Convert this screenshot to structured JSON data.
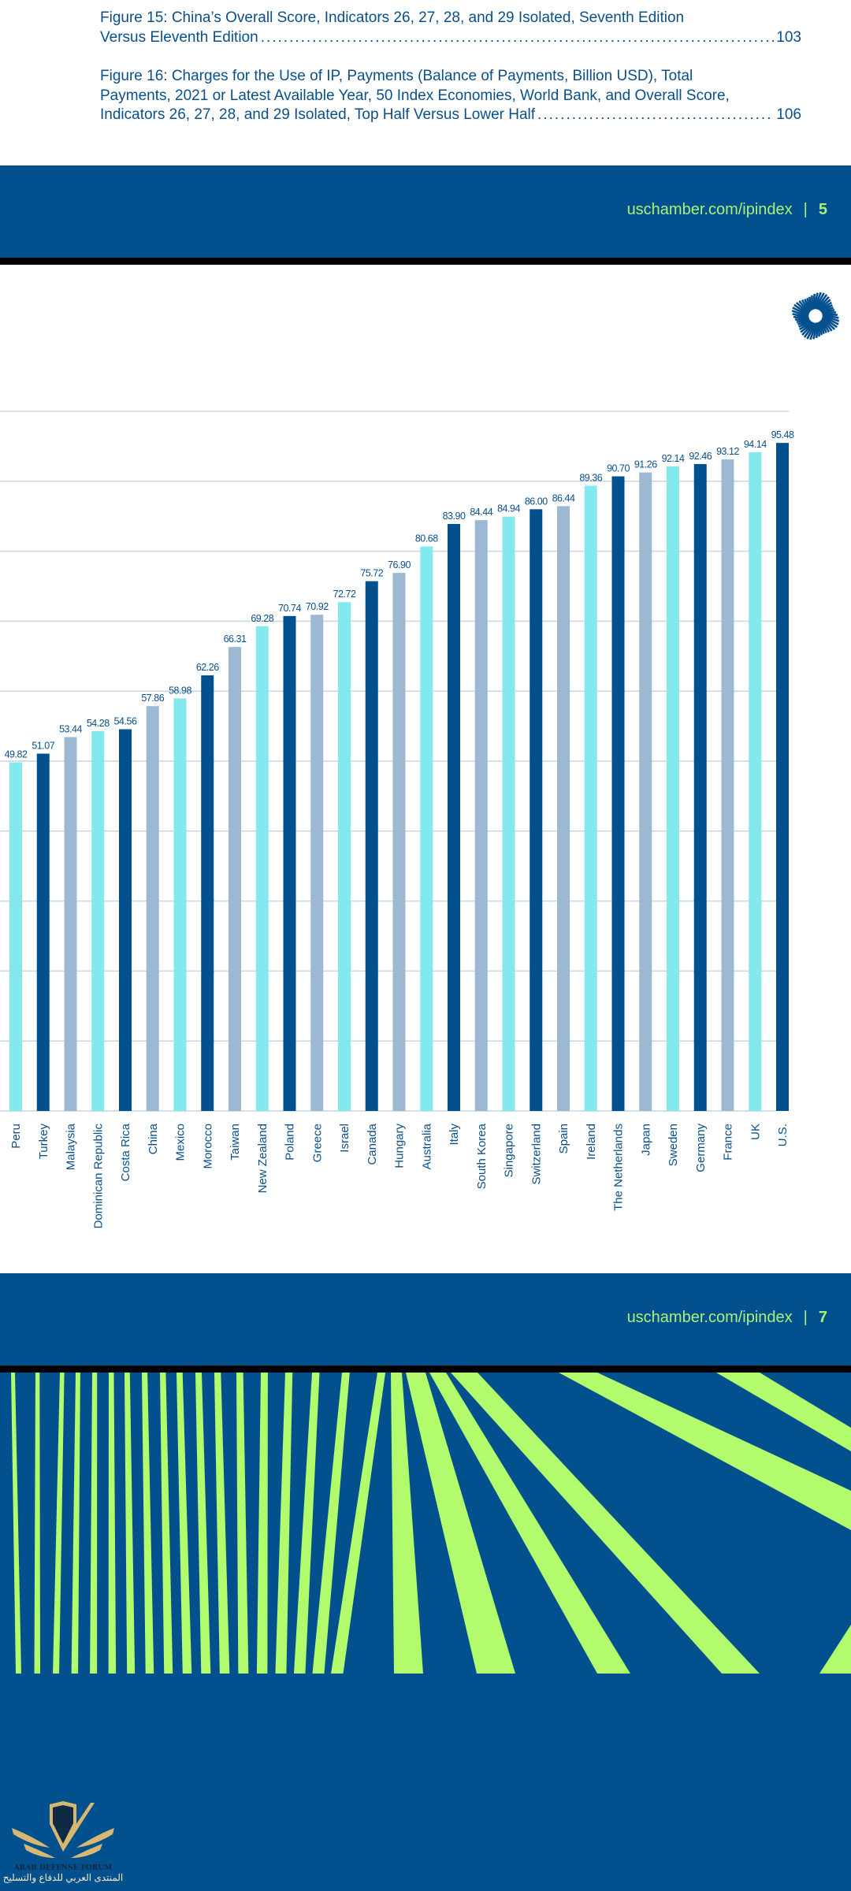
{
  "toc": {
    "entries": [
      {
        "lines": [
          "Figure 15: China’s Overall Score, Indicators 26, 27, 28, and 29 Isolated, Seventh Edition"
        ],
        "last_line": "Versus Eleventh Edition",
        "page": "103"
      },
      {
        "lines": [
          "Figure 16: Charges for the Use of IP, Payments (Balance of Payments, Billion USD), Total",
          "Payments, 2021 or Latest Available Year, 50 Index Economies, World Bank, and Overall Score,"
        ],
        "last_line": "Indicators 26, 27, 28, and 29 Isolated, Top Half Versus Lower Half",
        "page": "106"
      }
    ]
  },
  "footer_1": {
    "url": "uschamber.com/ipindex",
    "separator": "|",
    "page": "5"
  },
  "footer_2": {
    "url": "uschamber.com/ipindex",
    "separator": "|",
    "page": "7"
  },
  "colors": {
    "brand_blue": "#03508e",
    "accent_green": "#a9f07a",
    "stripe_green": "#b2fb6c",
    "bar_dark": "#03508e",
    "bar_gray": "#9cb8d3",
    "bar_cyan": "#84e9ef",
    "text_blue": "#0a4f8a"
  },
  "icons": {
    "top_logo": "spiral-sunburst-logo",
    "watermark": "arab-defense-forum-shield-logo"
  },
  "watermark": {
    "text_en": "ARAB DEFENSE FORUM",
    "text_ar": "المنتدى العربي للدفاع والتسليح"
  },
  "chart_data": {
    "type": "bar",
    "categories": [
      "Peru",
      "Turkey",
      "Malaysia",
      "Dominican Republic",
      "Costa Rica",
      "China",
      "Mexico",
      "Morocco",
      "Taiwan",
      "New Zealand",
      "Poland",
      "Greece",
      "Israel",
      "Canada",
      "Hungary",
      "Australia",
      "Italy",
      "South Korea",
      "Singapore",
      "Switzerland",
      "Spain",
      "Ireland",
      "The Netherlands",
      "Japan",
      "Sweden",
      "Germany",
      "France",
      "UK",
      "U.S."
    ],
    "values": [
      49.82,
      51.07,
      53.44,
      54.28,
      54.56,
      57.86,
      58.98,
      62.26,
      66.31,
      69.28,
      70.74,
      70.92,
      72.72,
      75.72,
      76.9,
      80.68,
      83.9,
      84.44,
      84.94,
      86.0,
      86.44,
      89.36,
      90.7,
      91.26,
      92.14,
      92.46,
      93.12,
      94.14,
      95.48
    ],
    "value_labels": [
      "49.82",
      "51.07",
      "53.44",
      "54.28",
      "54.56",
      "57.86",
      "58.98",
      "62.26",
      "66.31",
      "69.28",
      "70.74",
      "70.92",
      "72.72",
      "75.72",
      "76.90",
      "80.68",
      "83.90",
      "84.44",
      "84.94",
      "86.00",
      "86.44",
      "89.36",
      "90.70",
      "91.26",
      "92.14",
      "92.46",
      "93.12",
      "94.14",
      "95.48"
    ],
    "color_cycle": [
      "#84e9ef",
      "#03508e",
      "#9cb8d3"
    ],
    "ylim": [
      0,
      100
    ],
    "grid": true,
    "gridline_step": 10,
    "xlabel": "",
    "ylabel": "",
    "title": ""
  }
}
